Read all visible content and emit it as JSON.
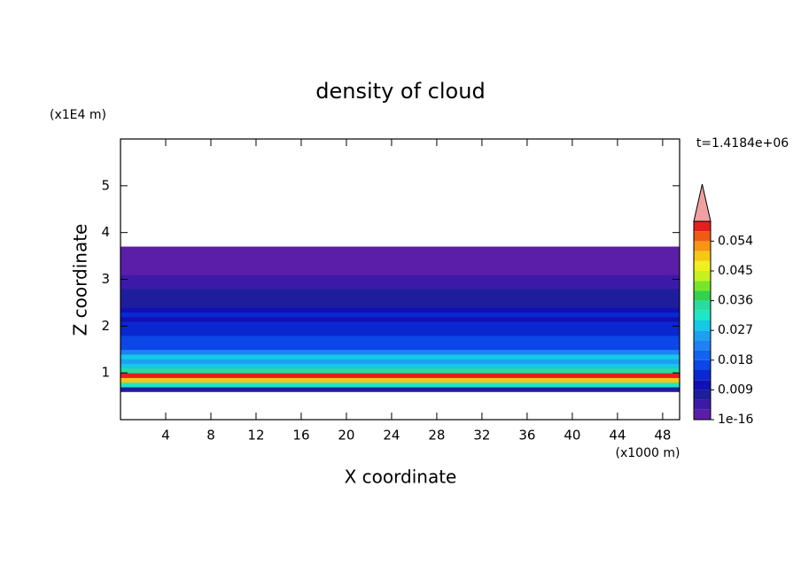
{
  "chart_data": {
    "type": "contour-profile",
    "title": "density of cloud",
    "xlabel": "X coordinate",
    "ylabel": "Z coordinate",
    "xunit": "(x1000 m)",
    "yunit": "(x1E4 m)",
    "time_label": "t=1.4184e+06",
    "xlim": [
      0,
      49.5
    ],
    "xticks": [
      4,
      8,
      12,
      16,
      20,
      24,
      28,
      32,
      36,
      40,
      44,
      48
    ],
    "ylim": [
      0,
      6
    ],
    "yticks": [
      1,
      2,
      3,
      4,
      5
    ],
    "z": [
      0.65,
      0.75,
      0.85,
      0.95,
      1.05,
      1.15,
      1.25,
      1.35,
      1.45,
      1.55,
      1.65,
      1.75,
      1.85,
      1.95,
      2.05,
      2.15,
      2.25,
      2.35,
      2.45,
      2.55,
      2.65,
      2.75,
      2.85,
      2.95,
      3.05,
      3.15,
      3.25,
      3.35,
      3.45,
      3.55,
      3.65
    ],
    "values": [
      0.006,
      0.03,
      0.05,
      0.057,
      0.036,
      0.027,
      0.024,
      0.027,
      0.021,
      0.018,
      0.015,
      0.015,
      0.012,
      0.013,
      0.012,
      0.011,
      0.012,
      0.011,
      0.009,
      0.008,
      0.007,
      0.006,
      0.005,
      0.004,
      0.003,
      0.002,
      0.001,
      0.001,
      0.001,
      0.001,
      0.001
    ],
    "clim": [
      0,
      0.06
    ],
    "cticks": [
      1e-16,
      0.009,
      0.018,
      0.027,
      0.036,
      0.045,
      0.054
    ],
    "colors": [
      "#5b1ea8",
      "#3c1aa8",
      "#1e1e9c",
      "#1010b4",
      "#0a28d0",
      "#0c46e6",
      "#1064f0",
      "#1e82f5",
      "#1ea0f0",
      "#14c8e6",
      "#1ee6c8",
      "#28dca0",
      "#32d250",
      "#78e628",
      "#c8f01e",
      "#f0f01e",
      "#f5c814",
      "#f59614",
      "#f05a14",
      "#e61e1e"
    ],
    "over_color": "#f0a0a0"
  }
}
